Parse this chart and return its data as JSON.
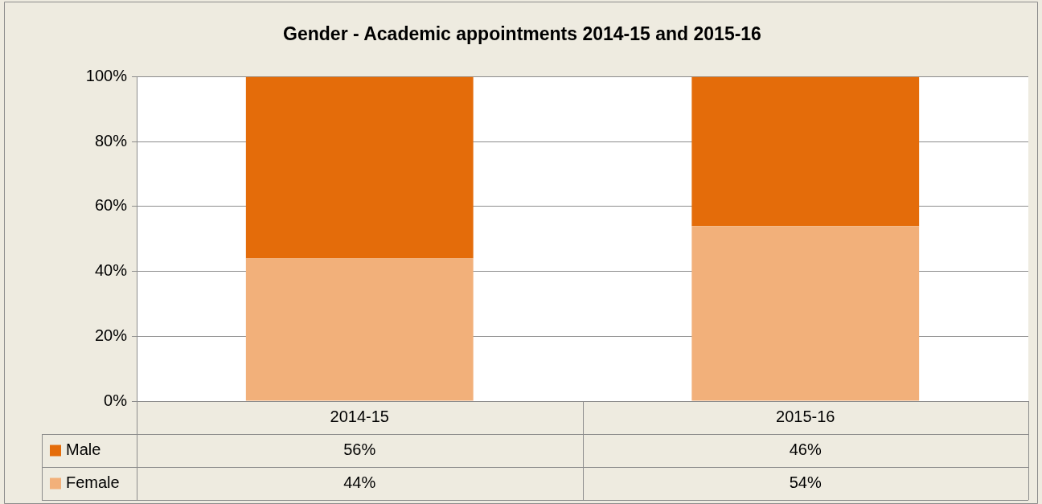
{
  "chart_data": {
    "type": "bar",
    "title": "Gender - Academic appointments 2014-15 and 2015-16",
    "categories": [
      "2014-15",
      "2015-16"
    ],
    "stacked": true,
    "series": [
      {
        "name": "Female",
        "color": "#f2b07a",
        "values": [
          44,
          54
        ],
        "value_labels": [
          "44%",
          "54%"
        ]
      },
      {
        "name": "Male",
        "color": "#e46c0a",
        "values": [
          56,
          46
        ],
        "value_labels": [
          "56%",
          "46%"
        ]
      }
    ],
    "ylim": [
      0,
      100
    ],
    "yticks": [
      {
        "value": 0,
        "label": "0%"
      },
      {
        "value": 20,
        "label": "20%"
      },
      {
        "value": 40,
        "label": "40%"
      },
      {
        "value": 60,
        "label": "60%"
      },
      {
        "value": 80,
        "label": "80%"
      },
      {
        "value": 100,
        "label": "100%"
      }
    ],
    "grid": "y",
    "legend": "bottom"
  }
}
